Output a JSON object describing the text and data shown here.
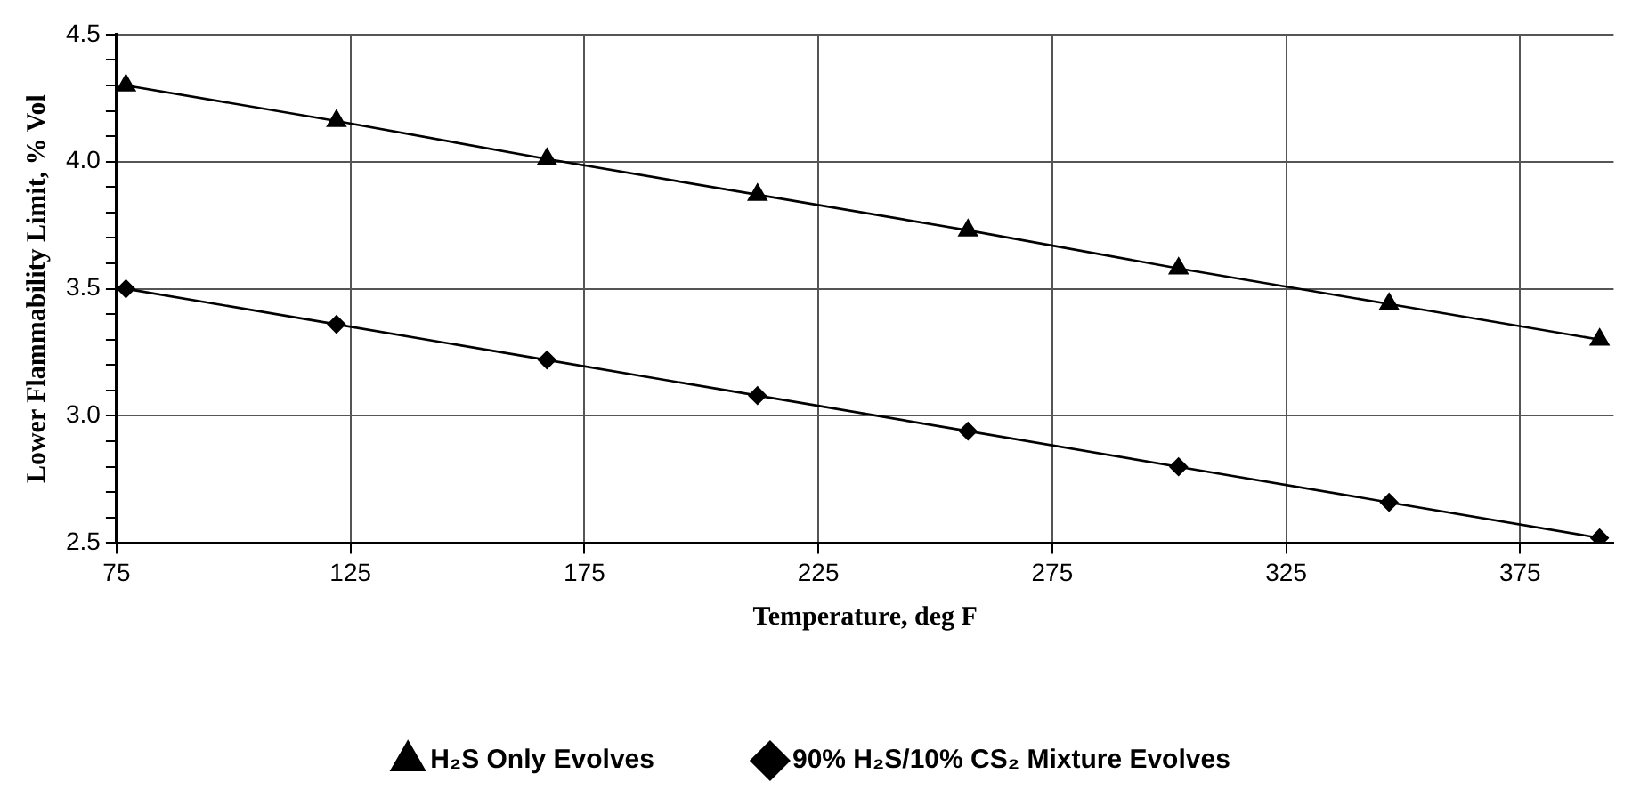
{
  "chart_data": {
    "type": "line",
    "xlabel": "Temperature, deg F",
    "ylabel": "Lower Flammability Limit, % Vol",
    "xlim": [
      75,
      395
    ],
    "xticks": [
      75,
      125,
      175,
      225,
      275,
      325,
      375
    ],
    "ylim": [
      2.5,
      4.5
    ],
    "yticks": [
      {
        "value": 2.5,
        "label": "2.5"
      },
      {
        "value": 2.6,
        "label": null
      },
      {
        "value": 2.7,
        "label": null
      },
      {
        "value": 2.8,
        "label": null
      },
      {
        "value": 2.9,
        "label": null
      },
      {
        "value": 3.0,
        "label": "3.0"
      },
      {
        "value": 3.1,
        "label": null
      },
      {
        "value": 3.2,
        "label": null
      },
      {
        "value": 3.3,
        "label": null
      },
      {
        "value": 3.4,
        "label": null
      },
      {
        "value": 3.5,
        "label": "3.5"
      },
      {
        "value": 3.6,
        "label": null
      },
      {
        "value": 3.7,
        "label": null
      },
      {
        "value": 3.8,
        "label": null
      },
      {
        "value": 3.9,
        "label": null
      },
      {
        "value": 4.0,
        "label": "4.0"
      },
      {
        "value": 4.1,
        "label": null
      },
      {
        "value": 4.2,
        "label": null
      },
      {
        "value": 4.3,
        "label": null
      },
      {
        "value": 4.4,
        "label": null
      },
      {
        "value": 4.5,
        "label": "4.5"
      }
    ],
    "x": [
      77,
      122,
      167,
      212,
      257,
      302,
      347,
      392
    ],
    "grid": true,
    "legend": "bottom",
    "line_style": "solid",
    "series": [
      {
        "name": "H₂S Only Evolves",
        "color": "#000000",
        "marker": "triangle",
        "values": [
          4.3,
          4.16,
          4.01,
          3.87,
          3.73,
          3.58,
          3.44,
          3.3
        ]
      },
      {
        "name": "90% H₂S/10% CS₂ Mixture Evolves",
        "color": "#000000",
        "marker": "diamond",
        "values": [
          3.5,
          3.36,
          3.22,
          3.08,
          2.94,
          2.8,
          2.66,
          2.52
        ]
      }
    ]
  }
}
